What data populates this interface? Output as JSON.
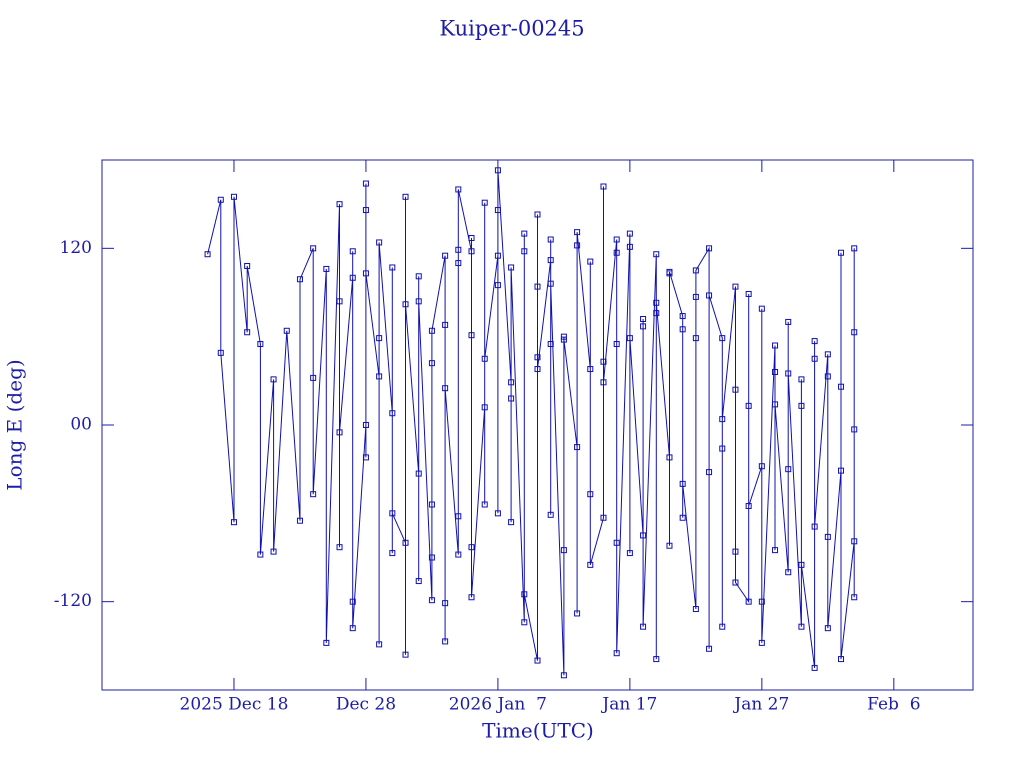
{
  "chart_data": {
    "type": "line",
    "title": "Kuiper-00245",
    "x_label": "Time(UTC)",
    "y_label": "Long E (deg)",
    "color": "#1010b0",
    "xlim": [
      "2025-12-08",
      "2026-02-12"
    ],
    "xticks": [
      {
        "value": "2025-12-18",
        "label": "2025 Dec 18"
      },
      {
        "value": "2025-12-28",
        "label": "Dec 28"
      },
      {
        "value": "2026-01-07",
        "label": "2026 Jan  7"
      },
      {
        "value": "2026-01-17",
        "label": "Jan 17"
      },
      {
        "value": "2026-01-27",
        "label": "Jan 27"
      },
      {
        "value": "2026-02-06",
        "label": "Feb  6"
      }
    ],
    "ylim": [
      -180,
      180
    ],
    "yticks": [
      -120,
      {
        "value": 0,
        "label": "00"
      },
      120
    ],
    "x": [
      "2025-12-16",
      "2025-12-17",
      "2025-12-17",
      "2025-12-18",
      "2025-12-18",
      "2025-12-19",
      "2025-12-19",
      "2025-12-20",
      "2025-12-20",
      "2025-12-21",
      "2025-12-21",
      "2025-12-22",
      "2025-12-23",
      "2025-12-23",
      "2025-12-24",
      "2025-12-24",
      "2025-12-24",
      "2025-12-25",
      "2025-12-25",
      "2025-12-26",
      "2025-12-26",
      "2025-12-26",
      "2025-12-26",
      "2025-12-27",
      "2025-12-27",
      "2025-12-27",
      "2025-12-27",
      "2025-12-28",
      "2025-12-28",
      "2025-12-28",
      "2025-12-28",
      "2025-12-28",
      "2025-12-29",
      "2025-12-29",
      "2025-12-29",
      "2025-12-29",
      "2025-12-30",
      "2025-12-30",
      "2025-12-30",
      "2025-12-30",
      "2025-12-31",
      "2025-12-31",
      "2025-12-31",
      "2025-12-31",
      "2026-01-01",
      "2026-01-01",
      "2026-01-01",
      "2026-01-01",
      "2026-01-02",
      "2026-01-02",
      "2026-01-02",
      "2026-01-02",
      "2026-01-02",
      "2026-01-03",
      "2026-01-03",
      "2026-01-03",
      "2026-01-03",
      "2026-01-03",
      "2026-01-04",
      "2026-01-04",
      "2026-01-04",
      "2026-01-04",
      "2026-01-04",
      "2026-01-05",
      "2026-01-05",
      "2026-01-05",
      "2026-01-05",
      "2026-01-05",
      "2026-01-06",
      "2026-01-06",
      "2026-01-06",
      "2026-01-06",
      "2026-01-07",
      "2026-01-07",
      "2026-01-07",
      "2026-01-07",
      "2026-01-07",
      "2026-01-08",
      "2026-01-08",
      "2026-01-08",
      "2026-01-08",
      "2026-01-09",
      "2026-01-09",
      "2026-01-09",
      "2026-01-09",
      "2026-01-10",
      "2026-01-10",
      "2026-01-10",
      "2026-01-10",
      "2026-01-10",
      "2026-01-11",
      "2026-01-11",
      "2026-01-11",
      "2026-01-11",
      "2026-01-11",
      "2026-01-12",
      "2026-01-12",
      "2026-01-12",
      "2026-01-12",
      "2026-01-13",
      "2026-01-13",
      "2026-01-13",
      "2026-01-13",
      "2026-01-14",
      "2026-01-14",
      "2026-01-14",
      "2026-01-14",
      "2026-01-15",
      "2026-01-15",
      "2026-01-15",
      "2026-01-15",
      "2026-01-16",
      "2026-01-16",
      "2026-01-16",
      "2026-01-16",
      "2026-01-16",
      "2026-01-17",
      "2026-01-17",
      "2026-01-17",
      "2026-01-17",
      "2026-01-18",
      "2026-01-18",
      "2026-01-18",
      "2026-01-18",
      "2026-01-19",
      "2026-01-19",
      "2026-01-19",
      "2026-01-19",
      "2026-01-20",
      "2026-01-20",
      "2026-01-20",
      "2026-01-20",
      "2026-01-21",
      "2026-01-21",
      "2026-01-21",
      "2026-01-21",
      "2026-01-22",
      "2026-01-22",
      "2026-01-22",
      "2026-01-22",
      "2026-01-23",
      "2026-01-23",
      "2026-01-23",
      "2026-01-23",
      "2026-01-24",
      "2026-01-24",
      "2026-01-24",
      "2026-01-24",
      "2026-01-25",
      "2026-01-25",
      "2026-01-25",
      "2026-01-25",
      "2026-01-26",
      "2026-01-26",
      "2026-01-26",
      "2026-01-26",
      "2026-01-27",
      "2026-01-27",
      "2026-01-27",
      "2026-01-27",
      "2026-01-28",
      "2026-01-28",
      "2026-01-28",
      "2026-01-28",
      "2026-01-29",
      "2026-01-29",
      "2026-01-29",
      "2026-01-29",
      "2026-01-30",
      "2026-01-30",
      "2026-01-30",
      "2026-01-30",
      "2026-01-31",
      "2026-01-31",
      "2026-01-31",
      "2026-01-31",
      "2026-02-01",
      "2026-02-01",
      "2026-02-01",
      "2026-02-01",
      "2026-02-02",
      "2026-02-02",
      "2026-02-02",
      "2026-02-02",
      "2026-02-03",
      "2026-02-03",
      "2026-02-03",
      "2026-02-03",
      "2026-02-03"
    ],
    "values": [
      116,
      153,
      49,
      -66,
      155,
      63,
      108,
      55,
      -88,
      31,
      -86,
      64,
      -65,
      99,
      120,
      32,
      -47,
      106,
      -148,
      150,
      84,
      -83,
      -5,
      100,
      118,
      -120,
      -138,
      0,
      164,
      -22,
      146,
      103,
      33,
      59,
      -149,
      124,
      8,
      -87,
      107,
      -60,
      -80,
      155,
      -156,
      82,
      -33,
      101,
      -106,
      84,
      -119,
      -54,
      42,
      -90,
      64,
      115,
      -121,
      68,
      -147,
      25,
      -88,
      119,
      110,
      -62,
      160,
      118,
      127,
      61,
      -83,
      -117,
      12,
      151,
      -54,
      45,
      115,
      146,
      -60,
      95,
      173,
      29,
      -66,
      18,
      107,
      -134,
      118,
      130,
      -115,
      -160,
      143,
      94,
      46,
      38,
      112,
      -61,
      126,
      55,
      96,
      -170,
      -85,
      60,
      58,
      -15,
      -128,
      122,
      131,
      38,
      -47,
      111,
      -95,
      -63,
      162,
      43,
      29,
      126,
      -80,
      117,
      55,
      -155,
      130,
      121,
      -87,
      59,
      -75,
      72,
      67,
      -137,
      116,
      -159,
      76,
      83,
      -22,
      103,
      -82,
      104,
      74,
      -63,
      65,
      -40,
      -125,
      87,
      59,
      105,
      120,
      -152,
      -32,
      88,
      59,
      -137,
      -16,
      4,
      94,
      -86,
      24,
      -107,
      -120,
      89,
      13,
      -55,
      -28,
      -120,
      79,
      -148,
      54,
      -85,
      36,
      14,
      -100,
      -30,
      70,
      35,
      -137,
      31,
      13,
      -95,
      -165,
      45,
      57,
      -69,
      48,
      -76,
      33,
      -138,
      -31,
      26,
      117,
      -159,
      -79,
      120,
      -3,
      63,
      -117
    ]
  }
}
